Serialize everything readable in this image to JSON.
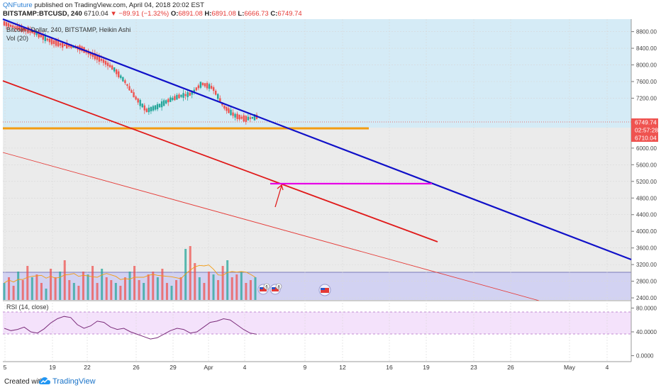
{
  "header": {
    "user": "QNFuture",
    "published_text": " published on TradingView.com, April 04, 2018 20:02 EST",
    "symbol": "BITSTAMP:BTCUSD, 240",
    "last_price": "6710.04",
    "change": "▼ −89.91 (−1.32%)",
    "open_label": "O:",
    "open": "6891.08",
    "high_label": "H:",
    "high": "6891.08",
    "low_label": "L:",
    "low": "6666.73",
    "close_label": "C:",
    "close": "6749.74"
  },
  "legend": {
    "main": "Bitcoin / Dollar, 240, BITSTAMP, Heikin Ashi",
    "vol": "Vol (20)",
    "rsi": "RSI (14, close)"
  },
  "price_badges": {
    "close": "6749.74",
    "countdown": "02:57:28",
    "last": "6710.04"
  },
  "event_markers": [
    "6",
    "8"
  ],
  "footer": {
    "created": "Created with",
    "brand": "TradingView"
  },
  "colors": {
    "blue_zone": "#d5ebf6",
    "volume_zone": "#d2d2f2",
    "rsi_band": "#f4e2fb",
    "up_candle": "#26a69a",
    "down_candle": "#ef5350",
    "blue_trendline": "#1010c8",
    "red_trendline": "#e01a1a",
    "support_line": "#f39c12",
    "magenta_line": "#e600e6"
  },
  "chart_data": [
    {
      "type": "line",
      "title": "Bitcoin / Dollar, 240, BITSTAMP, Heikin Ashi",
      "xlabel": "",
      "ylabel": "",
      "x_ticks": [
        "5",
        "19",
        "22",
        "26",
        "29",
        "Apr",
        "4",
        "9",
        "12",
        "16",
        "19",
        "23",
        "26",
        "May",
        "4"
      ],
      "y_ticks": [
        "8800.00",
        "8400.00",
        "8000.00",
        "7600.00",
        "7200.00",
        "6000.00",
        "5600.00",
        "5200.00",
        "4800.00",
        "4400.00",
        "4000.00",
        "3600.00",
        "3200.00",
        "2800.00",
        "2400.00"
      ],
      "ylim": [
        2350,
        9100
      ],
      "price_path": [
        9000,
        8900,
        8850,
        8750,
        8600,
        8500,
        8450,
        8400,
        8250,
        8100,
        7900,
        7600,
        7200,
        6900,
        7000,
        7150,
        7250,
        7300,
        7550,
        7450,
        7000,
        6780,
        6700,
        6750
      ],
      "lines": [
        {
          "name": "blue-trendline",
          "points": [
            [
              9000,
              9040
            ],
            [
              3360,
              3290
            ]
          ]
        },
        {
          "name": "red-trendline",
          "points": [
            [
              7650,
              7700
            ],
            [
              3850,
              3800
            ]
          ]
        },
        {
          "name": "thin-red-trendline",
          "points": [
            [
              6000,
              6050
            ],
            [
              2400,
              2350
            ]
          ]
        },
        {
          "name": "horizontal-support",
          "value": 6545
        },
        {
          "name": "magenta-target",
          "value": 5200
        }
      ],
      "annotations": [
        "arrow pointing to red trendline at magenta target line start"
      ]
    },
    {
      "type": "bar",
      "title": "Vol (20)",
      "values": [
        0.3,
        0.4,
        0.25,
        0.5,
        0.35,
        0.6,
        0.4,
        0.45,
        0.3,
        0.2,
        0.55,
        0.4,
        0.5,
        0.7,
        0.35,
        0.3,
        0.25,
        0.5,
        0.45,
        0.6,
        0.3,
        0.55,
        0.4,
        0.35,
        0.3,
        0.25,
        0.4,
        0.5,
        0.6,
        0.35,
        0.3,
        0.45,
        0.5,
        0.4,
        0.55,
        0.3,
        0.25,
        0.35,
        0.4,
        0.9,
        0.95,
        0.65,
        0.4,
        0.3,
        0.5,
        0.45,
        0.35,
        0.6,
        0.7,
        0.4,
        0.45,
        0.5,
        0.3,
        0.35,
        0.4
      ]
    },
    {
      "type": "line",
      "title": "RSI (14, close)",
      "y_ticks": [
        "80.0000",
        "40.0000",
        "0.0000"
      ],
      "ylim": [
        -10,
        90
      ],
      "bands": [
        30,
        70
      ],
      "values": [
        46,
        42,
        44,
        48,
        40,
        38,
        45,
        55,
        62,
        66,
        64,
        52,
        46,
        50,
        58,
        56,
        48,
        44,
        46,
        40,
        36,
        32,
        28,
        30,
        36,
        42,
        46,
        44,
        38,
        40,
        48,
        56,
        58,
        62,
        60,
        52,
        44,
        38,
        36
      ]
    }
  ]
}
